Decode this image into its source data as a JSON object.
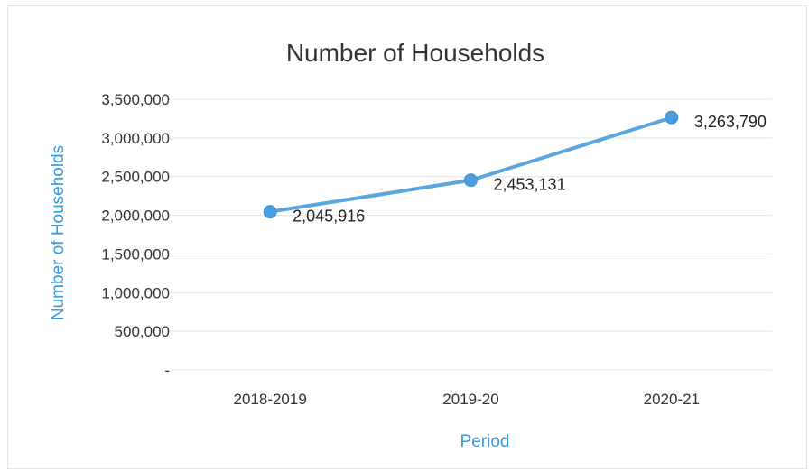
{
  "chart_data": {
    "type": "line",
    "title": "Number of Households",
    "xlabel": "Period",
    "ylabel": "Number of Households",
    "categories": [
      "2018-2019",
      "2019-20",
      "2020-21"
    ],
    "series": [
      {
        "values": [
          2045916,
          2453131,
          3263790
        ]
      }
    ],
    "data_labels": [
      "2,045,916",
      "2,453,131",
      "3,263,790"
    ],
    "ylim": [
      0,
      3500000
    ],
    "yticks": [
      0,
      500000,
      1000000,
      1500000,
      2000000,
      2500000,
      3000000,
      3500000
    ],
    "ytick_labels": [
      "-",
      "500,000",
      "1,000,000",
      "1,500,000",
      "2,000,000",
      "2,500,000",
      "3,000,000",
      "3,500,000"
    ],
    "grid": true,
    "legend": "none",
    "line_color": "#5aa7e0",
    "marker_color": "#4a9ee0"
  }
}
